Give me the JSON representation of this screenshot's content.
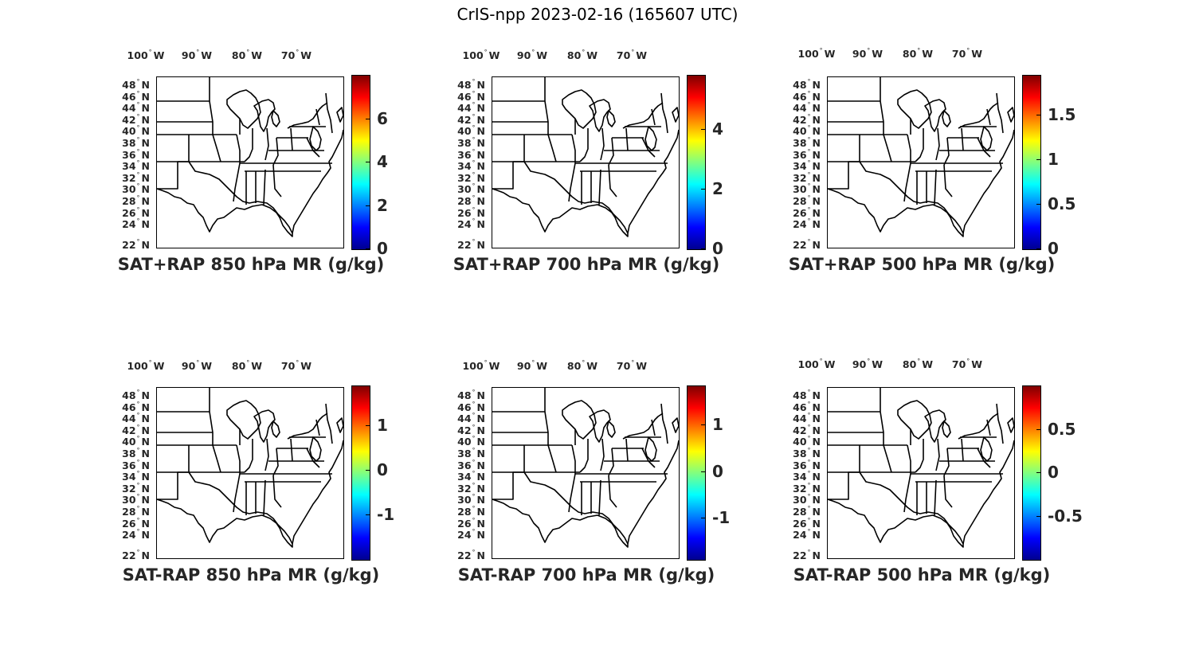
{
  "figure_title": "CrIS-npp 2023-02-16 (165607 UTC)",
  "lon_labels": [
    "100",
    "90",
    "80",
    "70"
  ],
  "lon_suffix": "W",
  "lat_labels": [
    "48",
    "46",
    "44",
    "42",
    "40",
    "38",
    "36",
    "34",
    "32",
    "30",
    "28",
    "26",
    "24",
    "22"
  ],
  "lat_suffix": "N",
  "degree_symbol": "°",
  "colormap": "jet",
  "colormap_colors": [
    "#00008f",
    "#0000ff",
    "#0080ff",
    "#00ffff",
    "#80ff80",
    "#ffff00",
    "#ff8000",
    "#ff0000",
    "#800000"
  ],
  "panels": [
    {
      "title": "SAT+RAP 850 hPa MR (g/kg)",
      "cmin": 0,
      "cmax": 8.0,
      "ticks": [
        {
          "v": 0,
          "label": "0"
        },
        {
          "v": 2,
          "label": "2"
        },
        {
          "v": 4,
          "label": "4"
        },
        {
          "v": 6,
          "label": "6"
        }
      ]
    },
    {
      "title": "SAT+RAP 700 hPa MR (g/kg)",
      "cmin": 0,
      "cmax": 5.8,
      "ticks": [
        {
          "v": 0,
          "label": "0"
        },
        {
          "v": 2,
          "label": "2"
        },
        {
          "v": 4,
          "label": "4"
        }
      ]
    },
    {
      "title": "SAT+RAP 500 hPa MR (g/kg)",
      "cmin": 0,
      "cmax": 1.95,
      "ticks": [
        {
          "v": 0,
          "label": "0"
        },
        {
          "v": 0.5,
          "label": "0.5"
        },
        {
          "v": 1,
          "label": "1"
        },
        {
          "v": 1.5,
          "label": "1.5"
        }
      ]
    },
    {
      "title": "SAT-RAP 850 hPa MR (g/kg)",
      "cmin": -2.0,
      "cmax": 1.9,
      "ticks": [
        {
          "v": -1,
          "label": "-1"
        },
        {
          "v": 0,
          "label": "0"
        },
        {
          "v": 1,
          "label": "1"
        }
      ]
    },
    {
      "title": "SAT-RAP 700 hPa MR (g/kg)",
      "cmin": -1.9,
      "cmax": 1.85,
      "ticks": [
        {
          "v": -1,
          "label": "-1"
        },
        {
          "v": 0,
          "label": "0"
        },
        {
          "v": 1,
          "label": "1"
        }
      ]
    },
    {
      "title": "SAT-RAP 500 hPa MR (g/kg)",
      "cmin": -1.0,
      "cmax": 1.0,
      "ticks": [
        {
          "v": -0.5,
          "label": "-0.5"
        },
        {
          "v": 0,
          "label": "0"
        },
        {
          "v": 0.5,
          "label": "0.5"
        }
      ]
    }
  ]
}
